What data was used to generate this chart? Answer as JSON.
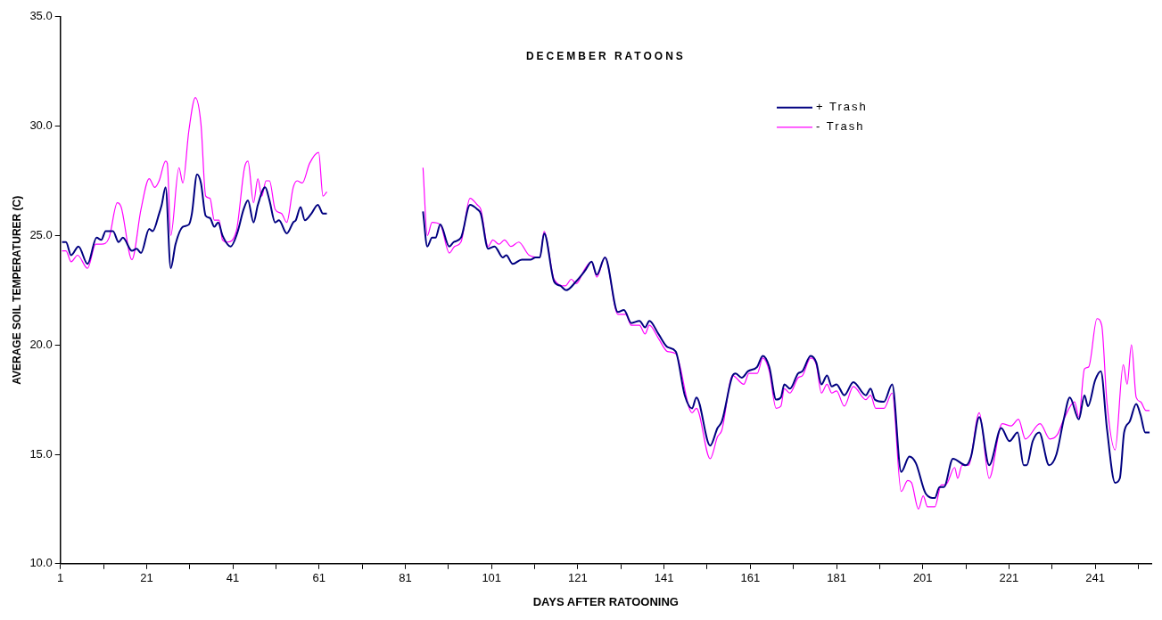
{
  "chart_data": {
    "type": "line",
    "title": "DECEMBER RATOONS",
    "xlabel": "DAYS AFTER RATOONING",
    "ylabel": "AVERAGE SOIL TEMPERATURER (C)",
    "xlim": [
      1,
      254
    ],
    "xticks": [
      1,
      {
        "value": 11,
        "label": null
      },
      21,
      {
        "value": 31,
        "label": null
      },
      41,
      {
        "value": 51,
        "label": null
      },
      61,
      {
        "value": 71,
        "label": null
      },
      81,
      {
        "value": 91,
        "label": null
      },
      101,
      {
        "value": 111,
        "label": null
      },
      121,
      {
        "value": 131,
        "label": null
      },
      141,
      {
        "value": 151,
        "label": null
      },
      161,
      {
        "value": 171,
        "label": null
      },
      181,
      {
        "value": 191,
        "label": null
      },
      201,
      {
        "value": 211,
        "label": null
      },
      221,
      {
        "value": 231,
        "label": null
      },
      241,
      {
        "value": 251,
        "label": null
      }
    ],
    "ylim": [
      10,
      35
    ],
    "yticks": [
      {
        "value": 10,
        "label": "10.0"
      },
      {
        "value": 15,
        "label": "15.0"
      },
      {
        "value": 20,
        "label": "20.0"
      },
      {
        "value": 25,
        "label": "25.0"
      },
      {
        "value": 30,
        "label": "30.0"
      },
      {
        "value": 35,
        "label": "35.0"
      }
    ],
    "grid": false,
    "legend": "top right",
    "marker": "none",
    "line_style": "solid",
    "series": [
      {
        "name": "+ Trash",
        "color": "#000080",
        "x": [
          1.4,
          2.3,
          3.5,
          5.2,
          7.3,
          9.4,
          10.5,
          11.5,
          13.2,
          14.5,
          15.5,
          17.6,
          18.7,
          19.7,
          21.6,
          22.4,
          23.9,
          24.5,
          25.4,
          26.6,
          27.7,
          29.4,
          30.8,
          31.5,
          32.7,
          33.6,
          34.7,
          35.7,
          36.7,
          37.6,
          38.6,
          40.5,
          42.0,
          43.5,
          44.5,
          45.8,
          46.8,
          48.5,
          49.5,
          50.8,
          51.7,
          53.5,
          55.0,
          55.6,
          56.7,
          57.7,
          59.2,
          60.7,
          61.9,
          62.8,
          74,
          85.1,
          86.1,
          87.2,
          88.0,
          89.1,
          91.2,
          92.2,
          93.9,
          96.0,
          97.7,
          98.5,
          100.2,
          101.7,
          103.6,
          104.4,
          105.9,
          108.0,
          110.1,
          111.2,
          112.2,
          113.2,
          115.5,
          117.0,
          118.3,
          120.6,
          122.7,
          124.2,
          125.4,
          127.3,
          130.3,
          131.7,
          133.4,
          135.3,
          136.6,
          137.6,
          139.7,
          141.8,
          143.7,
          145.8,
          147.5,
          148.5,
          151.7,
          153.4,
          154.4,
          156.9,
          157.6,
          159.0,
          160.5,
          162.6,
          163.9,
          165.4,
          167.0,
          168.1,
          168.9,
          170.2,
          172.1,
          173.1,
          175.0,
          176.3,
          177.5,
          178.8,
          179.9,
          181.0,
          182.8,
          184.9,
          187.8,
          188.9,
          189.9,
          192.0,
          193.9,
          196.0,
          197.9,
          199.4,
          201.7,
          203.8,
          204.9,
          205.9,
          208.0,
          211.0,
          212.2,
          214.1,
          216.4,
          219.2,
          221.1,
          223.0,
          224.4,
          225.1,
          226.5,
          228.0,
          230.3,
          232.0,
          233.7,
          235.1,
          237.2,
          238.5,
          239.3,
          241.0,
          242.3,
          243.7,
          245.6,
          246.7,
          247.7,
          249.0,
          250.5,
          251.5,
          252.6,
          253.6
        ],
        "values": [
          24.7,
          24.7,
          24.1,
          24.5,
          23.7,
          24.9,
          24.8,
          25.2,
          25.2,
          24.7,
          24.9,
          24.3,
          24.4,
          24.2,
          25.3,
          25.2,
          26.0,
          26.4,
          27.2,
          23.5,
          24.6,
          25.4,
          25.5,
          26.0,
          27.8,
          27.4,
          25.9,
          25.8,
          25.4,
          25.6,
          25.0,
          24.5,
          25.1,
          26.2,
          26.6,
          25.6,
          26.4,
          27.2,
          26.6,
          25.6,
          25.7,
          25.1,
          25.6,
          25.7,
          26.3,
          25.7,
          26.0,
          26.4,
          26.0,
          26.0,
          null,
          26.1,
          24.5,
          24.9,
          24.9,
          25.5,
          24.5,
          24.7,
          24.9,
          26.4,
          26.2,
          26.0,
          24.4,
          24.5,
          24.0,
          24.1,
          23.7,
          23.9,
          23.9,
          24.0,
          24.0,
          25.1,
          22.9,
          22.7,
          22.5,
          22.9,
          23.4,
          23.8,
          23.2,
          24.0,
          21.5,
          21.6,
          21.0,
          21.1,
          20.8,
          21.1,
          20.5,
          19.9,
          19.7,
          17.7,
          17.1,
          17.6,
          15.4,
          16.2,
          16.5,
          18.6,
          18.7,
          18.5,
          18.8,
          19.0,
          19.5,
          19.0,
          17.5,
          17.6,
          18.2,
          18.0,
          18.7,
          18.8,
          19.5,
          19.2,
          18.2,
          18.6,
          18.1,
          18.2,
          17.7,
          18.3,
          17.7,
          18.0,
          17.5,
          17.4,
          18.2,
          14.2,
          14.9,
          14.6,
          13.2,
          13.0,
          13.5,
          13.5,
          14.8,
          14.5,
          14.9,
          16.7,
          14.5,
          16.2,
          15.6,
          16.0,
          14.5,
          14.5,
          15.6,
          16.0,
          14.5,
          15.0,
          16.6,
          17.6,
          16.6,
          17.7,
          17.2,
          18.4,
          18.8,
          16.2,
          13.7,
          13.9,
          16.0,
          16.5,
          17.3,
          16.8,
          16.0,
          16.0
        ]
      },
      {
        "name": "- Trash",
        "color": "#ff00ff",
        "x": [
          1.4,
          2.3,
          3.5,
          5.0,
          7.3,
          9.2,
          10.5,
          12.3,
          14.2,
          15.1,
          17.6,
          19.7,
          21.6,
          22.9,
          23.9,
          25.4,
          25.8,
          26.6,
          28.5,
          29.4,
          30.8,
          32.3,
          33.6,
          34.7,
          35.7,
          36.7,
          37.8,
          38.6,
          39.7,
          41.8,
          43.7,
          44.5,
          45.8,
          46.8,
          47.7,
          48.7,
          49.5,
          50.8,
          52.3,
          53.5,
          55.0,
          55.9,
          57.1,
          58.8,
          60.9,
          61.9,
          62.8,
          74,
          85.1,
          86.1,
          87.2,
          89.1,
          91.2,
          92.4,
          93.9,
          96.0,
          97.7,
          98.5,
          100.2,
          101.3,
          102.7,
          104.0,
          105.5,
          107.3,
          109.7,
          112.2,
          113.2,
          115.5,
          118.1,
          119.5,
          120.6,
          122.7,
          124.2,
          125.4,
          127.3,
          130.3,
          132.1,
          133.4,
          135.3,
          136.6,
          137.6,
          139.7,
          141.8,
          143.7,
          147.5,
          148.5,
          151.7,
          153.4,
          154.4,
          156.9,
          159.5,
          160.7,
          162.6,
          163.9,
          165.4,
          167.0,
          168.1,
          168.9,
          170.2,
          172.1,
          173.1,
          175.0,
          176.3,
          177.5,
          178.8,
          179.9,
          181.0,
          182.8,
          184.9,
          187.8,
          188.9,
          190.1,
          192.0,
          193.9,
          196.0,
          197.5,
          198.4,
          200.0,
          201.1,
          202.1,
          203.8,
          205.3,
          206.3,
          208.4,
          209.1,
          210.1,
          211.6,
          214.1,
          216.4,
          219.4,
          221.5,
          223.2,
          224.8,
          228.2,
          230.5,
          232.2,
          233.7,
          236.2,
          237.2,
          238.5,
          239.5,
          241.4,
          242.5,
          243.7,
          245.6,
          247.5,
          248.4,
          249.4,
          250.5,
          251.5,
          252.8,
          253.6
        ],
        "values": [
          24.3,
          24.3,
          23.8,
          24.1,
          23.5,
          24.6,
          24.6,
          24.9,
          26.5,
          26.3,
          23.9,
          26.2,
          27.6,
          27.2,
          27.5,
          28.4,
          28.3,
          25.0,
          28.1,
          27.4,
          29.8,
          31.3,
          30.1,
          26.8,
          26.7,
          25.7,
          25.7,
          24.8,
          24.7,
          25.2,
          28.1,
          28.4,
          26.5,
          27.6,
          26.8,
          27.5,
          27.5,
          26.2,
          26.0,
          25.6,
          27.2,
          27.5,
          27.4,
          28.3,
          28.8,
          26.8,
          27.0,
          null,
          28.1,
          25.0,
          25.6,
          25.5,
          24.2,
          24.5,
          24.7,
          26.7,
          26.4,
          26.2,
          24.5,
          24.8,
          24.6,
          24.8,
          24.5,
          24.7,
          24.1,
          24.0,
          25.2,
          23.0,
          22.7,
          23.0,
          22.8,
          23.5,
          23.8,
          23.1,
          24.0,
          21.4,
          21.4,
          20.9,
          20.9,
          20.5,
          20.9,
          20.3,
          19.7,
          19.6,
          16.9,
          17.1,
          14.8,
          15.8,
          16.1,
          18.6,
          18.2,
          18.7,
          18.7,
          19.4,
          18.8,
          17.1,
          17.2,
          18.0,
          17.8,
          18.5,
          18.6,
          19.4,
          19.1,
          17.8,
          18.2,
          17.8,
          17.9,
          17.2,
          18.1,
          17.5,
          17.7,
          17.1,
          17.1,
          17.8,
          13.3,
          13.8,
          13.7,
          12.5,
          13.1,
          12.6,
          12.6,
          13.6,
          13.6,
          14.4,
          13.9,
          14.5,
          14.5,
          16.9,
          13.9,
          16.4,
          16.3,
          16.6,
          15.7,
          16.4,
          15.7,
          15.9,
          16.6,
          17.4,
          16.7,
          18.9,
          19.0,
          21.2,
          20.9,
          17.4,
          15.2,
          19.1,
          18.2,
          20.0,
          17.6,
          17.4,
          17.0,
          17.0
        ]
      }
    ]
  }
}
